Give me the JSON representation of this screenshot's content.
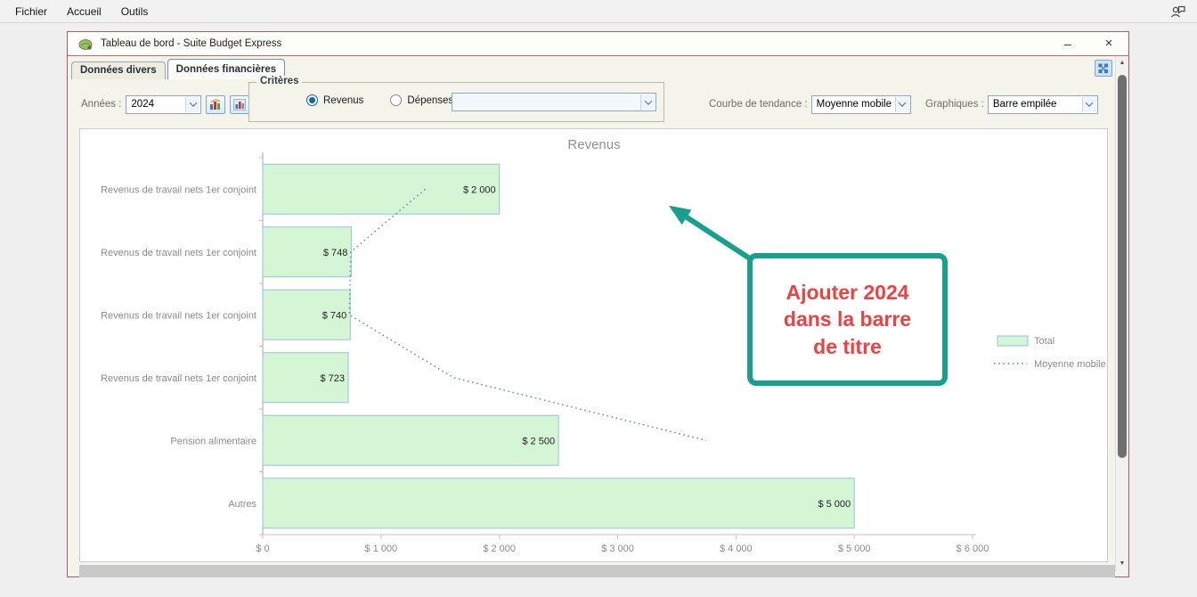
{
  "menubar": {
    "items": [
      {
        "label": "Fichier"
      },
      {
        "label": "Accueil"
      },
      {
        "label": "Outils"
      }
    ]
  },
  "window": {
    "title": "Tableau de bord - Suite Budget Express",
    "border_color": "#b25b5d",
    "minimize_glyph": "–",
    "close_glyph": "×",
    "tabs": [
      {
        "label": "Données divers"
      },
      {
        "label": "Données financières"
      }
    ],
    "scrollbar": {
      "up_glyph": "▲",
      "down_glyph": "▼"
    }
  },
  "controls": {
    "years_label": "Années :",
    "years_value": "2024",
    "criteria_group_label": "Critères",
    "radio_revenus_label": "Revenus",
    "radio_depenses_label": "Dépenses",
    "radio_selected": "Revenus",
    "category_combo_value": "",
    "trend_label": "Courbe de tendance :",
    "trend_value": "Moyenne mobile",
    "graph_label": "Graphiques :",
    "graph_value": "Barre empilée"
  },
  "annotation": {
    "lines": [
      "Ajouter 2024",
      "dans la barre",
      "de titre"
    ],
    "text_color": "#ee4140",
    "accent_color": "#17a08b"
  },
  "chart_data": {
    "type": "bar",
    "orientation": "horizontal",
    "title": "Revenus",
    "title_color": "#909090",
    "categories": [
      "Revenus de travail nets 1er conjoint",
      "Revenus de travail nets 1er conjoint",
      "Revenus de travail nets 1er conjoint",
      "Revenus de travail nets 1er conjoint",
      "Pension alimentaire",
      "Autres"
    ],
    "series": [
      {
        "name": "Total",
        "type": "bar",
        "values": [
          2000,
          748,
          740,
          723,
          2500,
          5000
        ],
        "value_labels": [
          "$ 2 000",
          "$ 748",
          "$ 740",
          "$ 723",
          "$ 2 500",
          "$ 5 000"
        ],
        "fill": "#d5f6d5",
        "stroke": "#95c0dc"
      },
      {
        "name": "Moyenne mobile",
        "type": "dotted_line",
        "values": [
          1374,
          744,
          732,
          1612,
          3750
        ],
        "at_category_index": [
          0,
          1,
          2,
          3,
          4
        ],
        "color": "#5f82cc"
      }
    ],
    "xlim": [
      0,
      6000
    ],
    "x_ticks": [
      {
        "value": 0,
        "label": "$ 0"
      },
      {
        "value": 1000,
        "label": "$ 1 000"
      },
      {
        "value": 2000,
        "label": "$ 2 000"
      },
      {
        "value": 3000,
        "label": "$ 3 000"
      },
      {
        "value": 4000,
        "label": "$ 4 000"
      },
      {
        "value": 5000,
        "label": "$ 5 000"
      },
      {
        "value": 6000,
        "label": "$ 6 000"
      }
    ],
    "grid": false,
    "legend": {
      "position": "right",
      "entries": [
        "Total",
        "Moyenne mobile"
      ]
    }
  }
}
